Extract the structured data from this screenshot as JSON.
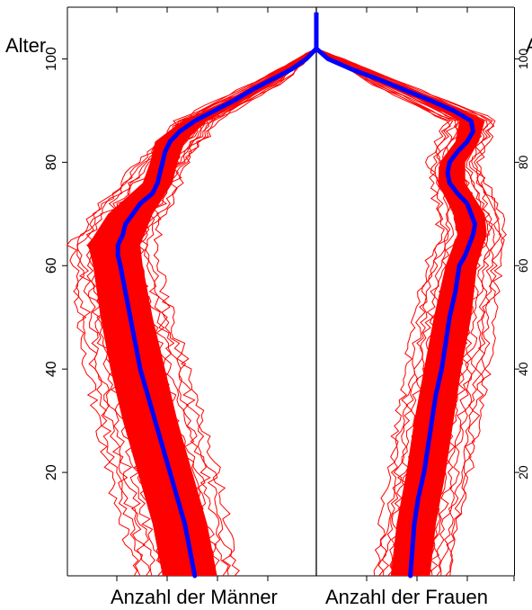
{
  "chart_data": {
    "type": "line",
    "title": "",
    "ylabel_left": "Alter",
    "ylabel_right_fragment": "A",
    "xlabel_left": "Anzahl der Männer",
    "xlabel_right": "Anzahl der Frauen",
    "ylim": [
      0,
      110
    ],
    "yticks": [
      20,
      40,
      60,
      80,
      100
    ],
    "ytick_labels": [
      "20",
      "40",
      "60",
      "80",
      "100"
    ],
    "right_ytick_labels": [
      "20",
      "40",
      "60",
      "80",
      "100"
    ],
    "colors": {
      "simulation_band": "#ff0000",
      "mean_line": "#0000ff",
      "axis": "#000000"
    },
    "left_panel": {
      "name": "Männer",
      "mean_series": {
        "age": [
          0,
          5,
          10,
          15,
          20,
          25,
          30,
          35,
          40,
          45,
          50,
          55,
          60,
          62,
          64,
          66,
          68,
          70,
          72,
          74,
          76,
          78,
          80,
          82,
          84,
          86,
          88,
          90,
          92,
          94,
          96,
          98,
          100,
          102
        ],
        "value": [
          0.49,
          0.51,
          0.53,
          0.56,
          0.59,
          0.62,
          0.65,
          0.68,
          0.71,
          0.73,
          0.75,
          0.77,
          0.79,
          0.8,
          0.8,
          0.78,
          0.77,
          0.74,
          0.71,
          0.66,
          0.64,
          0.63,
          0.62,
          0.61,
          0.59,
          0.55,
          0.49,
          0.41,
          0.33,
          0.26,
          0.18,
          0.1,
          0.04,
          0.0
        ]
      },
      "band_lower": {
        "age": [
          0,
          10,
          20,
          30,
          40,
          50,
          60,
          64,
          70,
          76,
          80,
          84,
          88,
          92,
          96,
          100,
          102
        ],
        "value": [
          0.4,
          0.44,
          0.5,
          0.56,
          0.61,
          0.66,
          0.7,
          0.71,
          0.66,
          0.58,
          0.56,
          0.53,
          0.44,
          0.29,
          0.15,
          0.03,
          0.0
        ]
      },
      "band_upper": {
        "age": [
          0,
          10,
          20,
          30,
          40,
          50,
          60,
          64,
          70,
          76,
          80,
          84,
          88,
          92,
          96,
          100,
          102
        ],
        "value": [
          0.62,
          0.66,
          0.72,
          0.78,
          0.83,
          0.87,
          0.9,
          0.92,
          0.84,
          0.7,
          0.67,
          0.65,
          0.54,
          0.36,
          0.21,
          0.05,
          0.0
        ]
      },
      "outer_lower": {
        "age": [
          0,
          20,
          40,
          60,
          64,
          70,
          80,
          88,
          96,
          102
        ],
        "value": [
          0.32,
          0.4,
          0.52,
          0.64,
          0.66,
          0.61,
          0.52,
          0.4,
          0.12,
          0.0
        ]
      },
      "outer_upper": {
        "age": [
          0,
          20,
          40,
          60,
          64,
          70,
          80,
          88,
          96,
          102
        ],
        "value": [
          0.72,
          0.84,
          0.92,
          0.98,
          0.99,
          0.9,
          0.71,
          0.57,
          0.23,
          0.0
        ]
      }
    },
    "right_panel": {
      "name": "Frauen",
      "mean_series": {
        "age": [
          0,
          5,
          10,
          15,
          20,
          25,
          30,
          35,
          40,
          45,
          50,
          55,
          60,
          62,
          64,
          66,
          68,
          70,
          72,
          74,
          76,
          78,
          80,
          82,
          84,
          86,
          88,
          90,
          92,
          94,
          96,
          98,
          100,
          102
        ],
        "value": [
          0.48,
          0.49,
          0.5,
          0.52,
          0.55,
          0.57,
          0.59,
          0.61,
          0.64,
          0.66,
          0.68,
          0.71,
          0.73,
          0.76,
          0.78,
          0.8,
          0.81,
          0.79,
          0.77,
          0.72,
          0.68,
          0.67,
          0.68,
          0.72,
          0.77,
          0.8,
          0.79,
          0.7,
          0.58,
          0.45,
          0.32,
          0.18,
          0.06,
          0.0
        ]
      },
      "band_lower": {
        "age": [
          0,
          10,
          20,
          30,
          40,
          50,
          60,
          66,
          70,
          76,
          80,
          84,
          88,
          92,
          96,
          100,
          102
        ],
        "value": [
          0.38,
          0.41,
          0.46,
          0.5,
          0.55,
          0.6,
          0.66,
          0.72,
          0.7,
          0.62,
          0.63,
          0.71,
          0.73,
          0.53,
          0.28,
          0.05,
          0.0
        ]
      },
      "band_upper": {
        "age": [
          0,
          10,
          20,
          30,
          40,
          50,
          60,
          66,
          70,
          76,
          80,
          84,
          88,
          92,
          96,
          100,
          102
        ],
        "value": [
          0.58,
          0.61,
          0.66,
          0.7,
          0.74,
          0.79,
          0.82,
          0.87,
          0.86,
          0.76,
          0.76,
          0.83,
          0.86,
          0.64,
          0.36,
          0.07,
          0.0
        ]
      },
      "outer_lower": {
        "age": [
          0,
          20,
          40,
          60,
          66,
          70,
          80,
          88,
          96,
          102
        ],
        "value": [
          0.3,
          0.37,
          0.46,
          0.56,
          0.64,
          0.62,
          0.58,
          0.66,
          0.24,
          0.0
        ]
      },
      "outer_upper": {
        "age": [
          0,
          20,
          40,
          60,
          66,
          70,
          80,
          88,
          96,
          102
        ],
        "value": [
          0.68,
          0.78,
          0.88,
          0.93,
          0.97,
          0.94,
          0.83,
          0.92,
          0.4,
          0.0
        ]
      }
    }
  }
}
